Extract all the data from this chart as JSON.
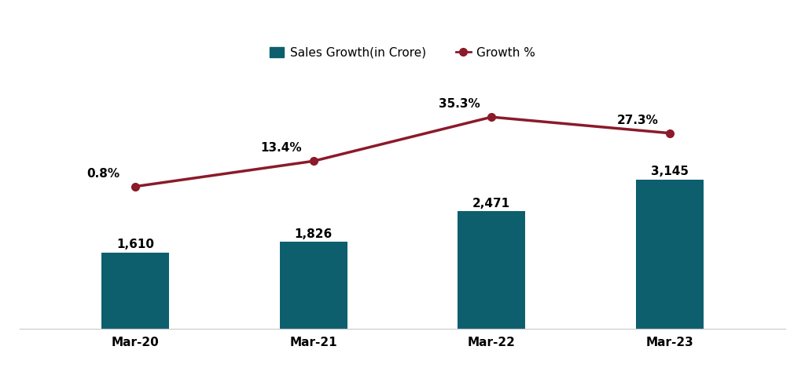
{
  "categories": [
    "Mar-20",
    "Mar-21",
    "Mar-22",
    "Mar-23"
  ],
  "bar_values": [
    1610,
    1826,
    2471,
    3145
  ],
  "bar_labels": [
    "1,610",
    "1,826",
    "2,471",
    "3,145"
  ],
  "growth_values": [
    0.8,
    13.4,
    35.3,
    27.3
  ],
  "growth_labels": [
    "0.8%",
    "13.4%",
    "35.3%",
    "27.3%"
  ],
  "bar_color": "#0d5f6e",
  "line_color": "#8b1a2a",
  "marker_color": "#8b1a2a",
  "background_color": "#ffffff",
  "legend_bar_label": "Sales Growth(in Crore)",
  "legend_line_label": "Growth %",
  "bar_label_fontsize": 11,
  "growth_label_fontsize": 11,
  "tick_label_fontsize": 11,
  "legend_fontsize": 11,
  "bar_width": 0.38,
  "ylim_bar": [
    0,
    5500
  ],
  "ylim_line": [
    -70,
    60
  ]
}
